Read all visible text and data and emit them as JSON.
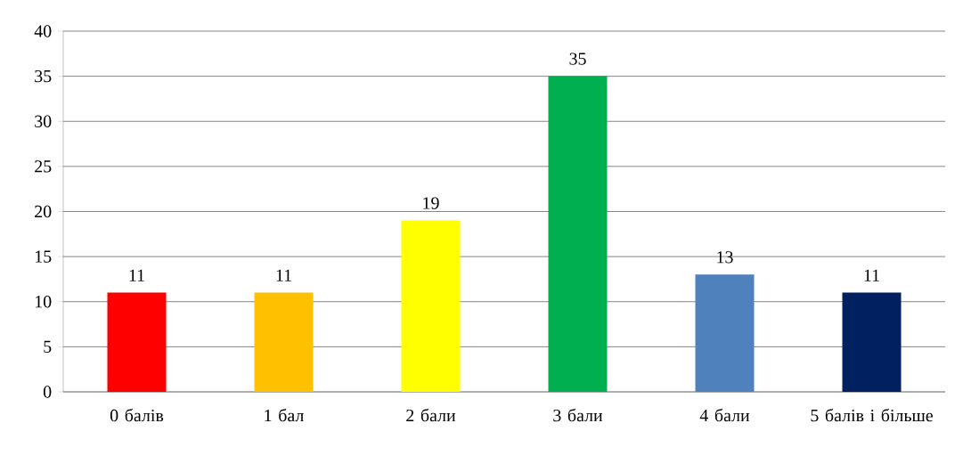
{
  "chart_data": {
    "type": "bar",
    "categories": [
      "0 балів",
      "1 бал",
      "2 бали",
      "3 бали",
      "4 бали",
      "5 балів і більше"
    ],
    "values": [
      11,
      11,
      19,
      35,
      13,
      11
    ],
    "colors": [
      "#ff0000",
      "#ffc000",
      "#ffff00",
      "#00b050",
      "#4f81bd",
      "#002060"
    ],
    "ylim": [
      0,
      40
    ],
    "yticks": [
      0,
      5,
      10,
      15,
      20,
      25,
      30,
      35,
      40
    ],
    "grid": "y",
    "data_labels": true
  }
}
